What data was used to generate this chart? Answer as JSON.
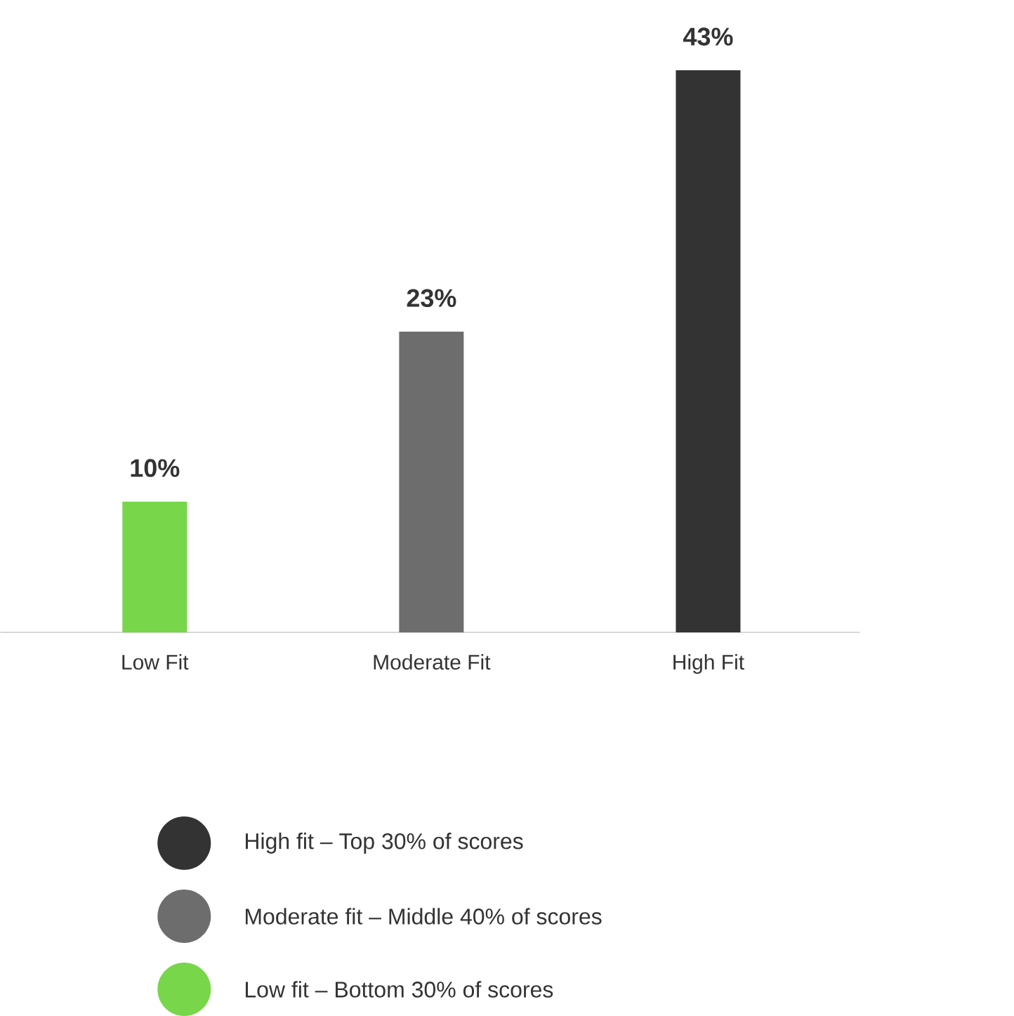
{
  "chart_data": {
    "type": "bar",
    "categories": [
      "Low Fit",
      "Moderate Fit",
      "High Fit"
    ],
    "series": [
      {
        "name": "High fit – Top 30% of scores",
        "color": "#333333",
        "values": [
          null,
          null,
          43
        ],
        "value_labels": [
          null,
          null,
          "43%"
        ]
      },
      {
        "name": "Moderate fit – Middle 40% of scores",
        "color": "#6d6d6d",
        "values": [
          null,
          23,
          null
        ],
        "value_labels": [
          null,
          "23%",
          null
        ]
      },
      {
        "name": "Low fit – Bottom 30% of scores",
        "color": "#77d64a",
        "values": [
          10,
          null,
          null
        ],
        "value_labels": [
          "10%",
          null,
          null
        ]
      }
    ],
    "legend": "bottom"
  }
}
